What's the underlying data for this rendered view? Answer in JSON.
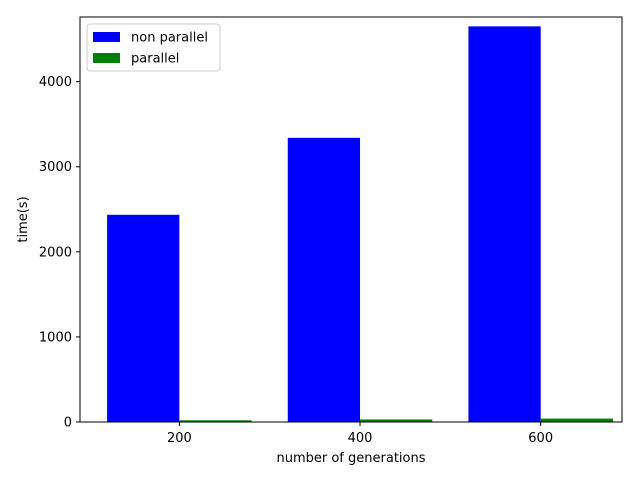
{
  "chart_data": {
    "type": "bar",
    "categories": [
      "200",
      "400",
      "600"
    ],
    "series": [
      {
        "name": "non parallel",
        "values": [
          2435,
          3340,
          4650
        ],
        "color": "#0000ff"
      },
      {
        "name": "parallel",
        "values": [
          20,
          30,
          40
        ],
        "color": "#008000"
      }
    ],
    "xlabel": "number of generations",
    "ylabel": "time(s)",
    "ylim": [
      0,
      4760
    ],
    "yticks": [
      0,
      1000,
      2000,
      3000,
      4000
    ],
    "grid": false,
    "legend_position": "top-left"
  }
}
